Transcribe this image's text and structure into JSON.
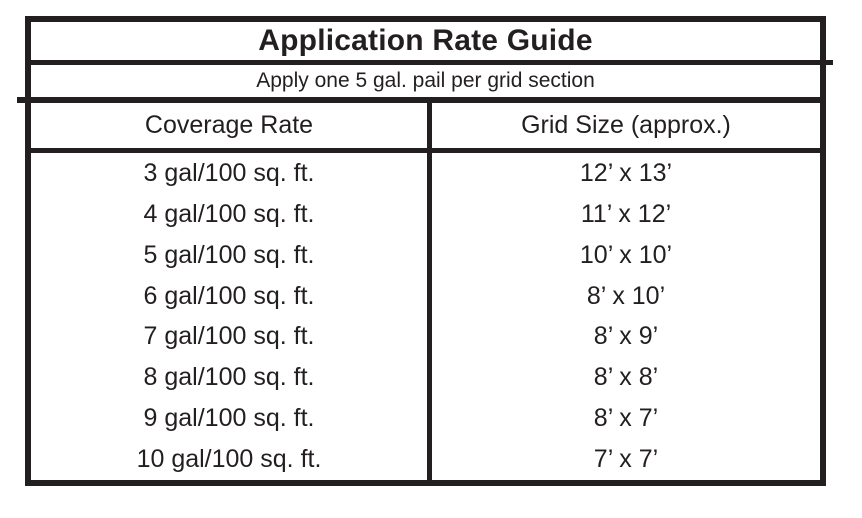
{
  "ink_color": "#231f20",
  "background_color": "#ffffff",
  "table": {
    "title": "Application Rate Guide",
    "subtitle": "Apply one 5 gal. pail per grid section",
    "columns": [
      "Coverage Rate",
      "Grid Size (approx.)"
    ],
    "rows": [
      {
        "coverage_rate": "3 gal/100 sq. ft.",
        "grid_size": "12’ x 13’"
      },
      {
        "coverage_rate": "4 gal/100 sq. ft.",
        "grid_size": "11’ x 12’"
      },
      {
        "coverage_rate": "5 gal/100 sq. ft.",
        "grid_size": "10’ x 10’"
      },
      {
        "coverage_rate": "6 gal/100 sq. ft.",
        "grid_size": "8’ x 10’"
      },
      {
        "coverage_rate": "7 gal/100 sq. ft.",
        "grid_size": "8’ x 9’"
      },
      {
        "coverage_rate": "8 gal/100 sq. ft.",
        "grid_size": "8’ x 8’"
      },
      {
        "coverage_rate": "9 gal/100 sq. ft.",
        "grid_size": "8’ x 7’"
      },
      {
        "coverage_rate": "10 gal/100 sq. ft.",
        "grid_size": "7’ x 7’"
      }
    ]
  }
}
